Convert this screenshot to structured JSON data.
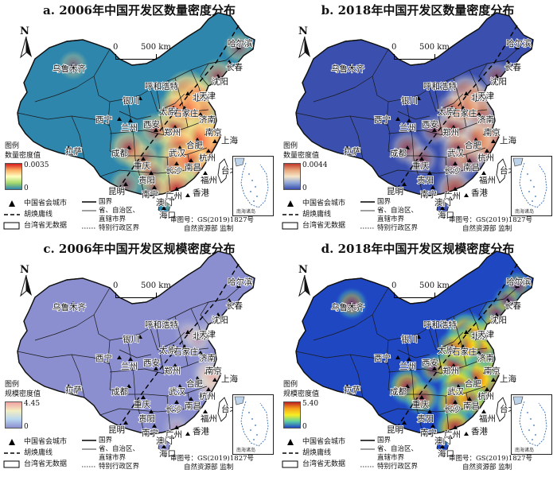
{
  "panels": [
    {
      "title": "a. 2006年中国开发区数量密度分布",
      "legend_title_1": "图例",
      "legend_title_2": "数量密度值",
      "max_label": "0.0035",
      "min_label": "0",
      "scheme": "yellow-green",
      "base_color": "#2f86ad",
      "hotspots": [
        {
          "city": "beijing",
          "level": 0.95
        },
        {
          "city": "tianjin",
          "level": 0.9
        },
        {
          "city": "jinan",
          "level": 0.85
        },
        {
          "city": "nanjing",
          "level": 0.95
        },
        {
          "city": "shanghai",
          "level": 1.0
        },
        {
          "city": "hangzhou",
          "level": 0.9
        },
        {
          "city": "hefei",
          "level": 0.85
        },
        {
          "city": "zhengzhou",
          "level": 0.85
        },
        {
          "city": "wuhan",
          "level": 0.85
        },
        {
          "city": "changsha",
          "level": 0.8
        },
        {
          "city": "nanchang",
          "level": 0.75
        },
        {
          "city": "fuzhou",
          "level": 0.7
        },
        {
          "city": "guangzhou",
          "level": 0.9
        },
        {
          "city": "shijiazhuang",
          "level": 0.8
        },
        {
          "city": "chongqing",
          "level": 0.65
        },
        {
          "city": "chengdu",
          "level": 0.7
        },
        {
          "city": "guiyang",
          "level": 0.55
        },
        {
          "city": "taiyuan",
          "level": 0.55
        },
        {
          "city": "shenyang",
          "level": 0.6
        },
        {
          "city": "xian",
          "level": 0.6
        },
        {
          "city": "nanning",
          "level": 0.5
        },
        {
          "city": "kunming",
          "level": 0.5
        },
        {
          "city": "harbin",
          "level": 0.45
        },
        {
          "city": "urumqi",
          "level": 0.4
        }
      ]
    },
    {
      "title": "b. 2018年中国开发区数量密度分布",
      "legend_title_1": "图例",
      "legend_title_2": "数量密度值",
      "max_label": "0.0044",
      "min_label": "0",
      "scheme": "blue-red",
      "base_color": "#3a4fae",
      "hotspots": [
        {
          "city": "beijing",
          "level": 0.8
        },
        {
          "city": "tianjin",
          "level": 0.75
        },
        {
          "city": "jinan",
          "level": 0.8
        },
        {
          "city": "nanjing",
          "level": 0.8
        },
        {
          "city": "shanghai",
          "level": 0.85
        },
        {
          "city": "hangzhou",
          "level": 0.7
        },
        {
          "city": "hefei",
          "level": 0.75
        },
        {
          "city": "zhengzhou",
          "level": 0.8
        },
        {
          "city": "wuhan",
          "level": 0.7
        },
        {
          "city": "changsha",
          "level": 0.6
        },
        {
          "city": "nanchang",
          "level": 0.55
        },
        {
          "city": "guangzhou",
          "level": 0.8
        },
        {
          "city": "shijiazhuang",
          "level": 0.75
        },
        {
          "city": "chengdu",
          "level": 0.6
        },
        {
          "city": "chongqing",
          "level": 0.55
        },
        {
          "city": "taiyuan",
          "level": 0.55
        },
        {
          "city": "xian",
          "level": 0.5
        },
        {
          "city": "shenyang",
          "level": 0.5
        }
      ]
    },
    {
      "title": "c. 2006年中国开发区规模密度分布",
      "legend_title_1": "图例",
      "legend_title_2": "规模密度值",
      "max_label": "4.45",
      "min_label": "0",
      "scheme": "lavender",
      "base_color": "#8b8fcf",
      "hotspots": [
        {
          "city": "tianjin",
          "level": 0.6
        },
        {
          "city": "shanghai",
          "level": 0.8
        },
        {
          "city": "nanjing",
          "level": 0.55
        },
        {
          "city": "suzhou",
          "level": 0.6
        },
        {
          "city": "dalian",
          "level": 0.45
        },
        {
          "city": "beijing",
          "level": 0.4
        },
        {
          "city": "guangzhou",
          "level": 0.45
        },
        {
          "city": "hangzhou",
          "level": 0.4
        }
      ]
    },
    {
      "title": "d. 2018年中国开发区规模密度分布",
      "legend_title_1": "图例",
      "legend_title_2": "规模密度值",
      "max_label": "5.40",
      "min_label": "0",
      "scheme": "jet",
      "base_color": "#1f47c2",
      "hotspots": [
        {
          "city": "beijing",
          "level": 0.8
        },
        {
          "city": "tianjin",
          "level": 0.85
        },
        {
          "city": "jinan",
          "level": 0.85
        },
        {
          "city": "nanjing",
          "level": 0.9
        },
        {
          "city": "shanghai",
          "level": 0.95
        },
        {
          "city": "hangzhou",
          "level": 0.8
        },
        {
          "city": "hefei",
          "level": 0.8
        },
        {
          "city": "zhengzhou",
          "level": 0.85
        },
        {
          "city": "wuhan",
          "level": 0.75
        },
        {
          "city": "changsha",
          "level": 0.8
        },
        {
          "city": "guangzhou",
          "level": 0.8
        },
        {
          "city": "shijiazhuang",
          "level": 0.75
        },
        {
          "city": "chengdu",
          "level": 0.7
        },
        {
          "city": "chongqing",
          "level": 0.65
        },
        {
          "city": "nanchang",
          "level": 0.6
        },
        {
          "city": "fuzhou",
          "level": 0.55
        },
        {
          "city": "shenyang",
          "level": 0.55
        },
        {
          "city": "harbin",
          "level": 0.45
        },
        {
          "city": "urumqi",
          "level": 0.5
        },
        {
          "city": "taiyuan",
          "level": 0.5
        },
        {
          "city": "xian",
          "level": 0.5
        },
        {
          "city": "changchun",
          "level": 0.45
        },
        {
          "city": "dalian",
          "level": 0.5
        }
      ]
    }
  ],
  "common": {
    "north": "N",
    "scale_zero": "0",
    "scale_dist": "500 km",
    "legend_capital": "中国省会城市",
    "legend_hu_line": "胡焕庸线",
    "legend_taiwan": "台湾省无数据",
    "legend_border_national": "国界",
    "legend_border_province_1": "省、自治区、",
    "legend_border_province_2": "直辖市界",
    "legend_border_sar": "特别行政区界",
    "review_no": "审图号：GS(2019)1827号",
    "supervisor": "自然资源部 监制",
    "inset_label": "南海诸岛",
    "undefined_label": "未定"
  },
  "city_labels": [
    {
      "id": "urumqi",
      "text": "乌鲁木齐"
    },
    {
      "id": "harbin",
      "text": "哈尔滨"
    },
    {
      "id": "changchun",
      "text": "长春"
    },
    {
      "id": "shenyang",
      "text": "沈阳"
    },
    {
      "id": "huhhot",
      "text": "呼和浩特"
    },
    {
      "id": "beijing",
      "text": "北京"
    },
    {
      "id": "tianjin",
      "text": "天津"
    },
    {
      "id": "yinchuan",
      "text": "银川"
    },
    {
      "id": "taiyuan",
      "text": "太原"
    },
    {
      "id": "shijiazhuang",
      "text": "石家庄"
    },
    {
      "id": "jinan",
      "text": "济南"
    },
    {
      "id": "xining",
      "text": "西宁"
    },
    {
      "id": "lanzhou",
      "text": "兰州"
    },
    {
      "id": "xian",
      "text": "西安"
    },
    {
      "id": "zhengzhou",
      "text": "郑州"
    },
    {
      "id": "nanjing",
      "text": "南京"
    },
    {
      "id": "hefei",
      "text": "合肥"
    },
    {
      "id": "shanghai",
      "text": "上海"
    },
    {
      "id": "lhasa",
      "text": "拉萨"
    },
    {
      "id": "chengdu",
      "text": "成都"
    },
    {
      "id": "wuhan",
      "text": "武汉"
    },
    {
      "id": "hangzhou",
      "text": "杭州"
    },
    {
      "id": "chongqing",
      "text": "重庆"
    },
    {
      "id": "changsha",
      "text": "长沙"
    },
    {
      "id": "nanchang",
      "text": "南昌"
    },
    {
      "id": "guiyang",
      "text": "贵阳"
    },
    {
      "id": "fuzhou",
      "text": "福州"
    },
    {
      "id": "kunming",
      "text": "昆明"
    },
    {
      "id": "nanning",
      "text": "南宁"
    },
    {
      "id": "guangzhou",
      "text": "广州"
    },
    {
      "id": "taibei",
      "text": "台北"
    },
    {
      "id": "hongkong",
      "text": "香港"
    },
    {
      "id": "macau",
      "text": "澳门"
    },
    {
      "id": "haikou",
      "text": "海口"
    }
  ]
}
